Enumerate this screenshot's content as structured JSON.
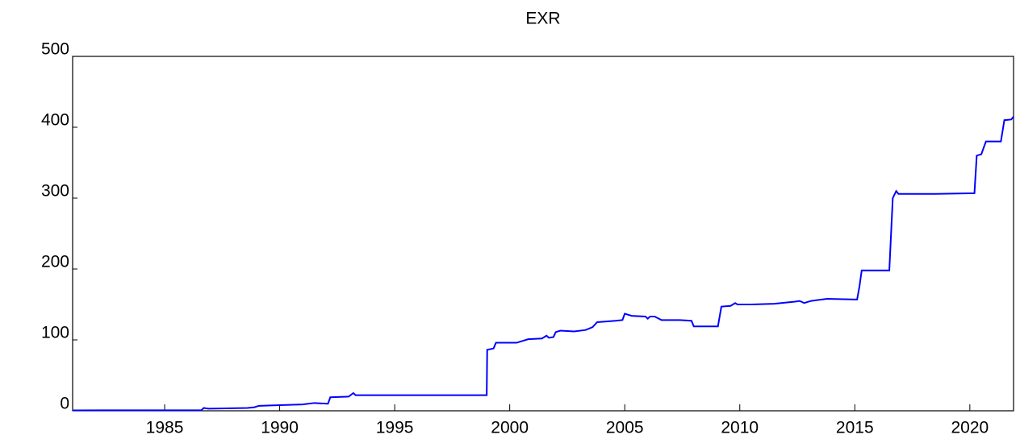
{
  "chart_data": {
    "type": "line",
    "title": "EXR",
    "x": [
      1981,
      1986.6,
      1986.7,
      1986.9,
      1988.6,
      1988.9,
      1989.1,
      1990,
      1991,
      1991.5,
      1992.1,
      1992.2,
      1993,
      1993.2,
      1993.3,
      1999.0,
      1999.02,
      1999.3,
      1999.4,
      2000.3,
      2000.8,
      2001.4,
      2001.6,
      2001.7,
      2001.9,
      2002.0,
      2002.2,
      2002.8,
      2003.3,
      2003.6,
      2003.8,
      2004.6,
      2004.9,
      2005.0,
      2005.3,
      2005.9,
      2006.0,
      2006.1,
      2006.3,
      2006.6,
      2007.4,
      2007.9,
      2008.0,
      2009.05,
      2009.2,
      2009.6,
      2009.8,
      2009.9,
      2010.5,
      2011.5,
      2012.4,
      2012.6,
      2012.8,
      2013.1,
      2013.8,
      2015.1,
      2015.2,
      2015.3,
      2016.5,
      2016.65,
      2016.8,
      2016.9,
      2018.5,
      2020.2,
      2020.3,
      2020.5,
      2020.7,
      2021.35,
      2021.5,
      2021.8,
      2021.9
    ],
    "series": [
      {
        "name": "EXR",
        "color": "#0000ff",
        "values": [
          0.6,
          0.9,
          4,
          3,
          4,
          5,
          7,
          8,
          9,
          11,
          10,
          19,
          20,
          25,
          22,
          22,
          86,
          88,
          96,
          96,
          101,
          102,
          106,
          103,
          104,
          111,
          113,
          112,
          114,
          118,
          125,
          127,
          128,
          137,
          134,
          133,
          130,
          133,
          133,
          128,
          128,
          127,
          119,
          119,
          147,
          148,
          152,
          150,
          150,
          151,
          154,
          155,
          152,
          155,
          158,
          157,
          175,
          198,
          198,
          300,
          310,
          306,
          306,
          307,
          360,
          362,
          380,
          380,
          410,
          411,
          415
        ]
      }
    ],
    "xlim": [
      1981,
      2021.9
    ],
    "xticks": [
      1985,
      1990,
      1995,
      2000,
      2005,
      2010,
      2015,
      2020
    ],
    "ylim": [
      0,
      500
    ],
    "yticks": [
      0,
      100,
      200,
      300,
      400,
      500
    ]
  }
}
